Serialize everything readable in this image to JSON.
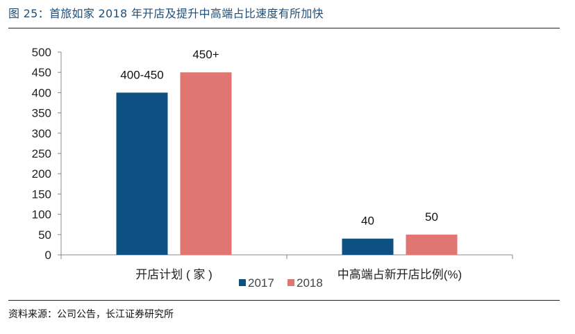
{
  "figure": {
    "title": "图 25：首旅如家 2018 年开店及提升中高端占比速度有所加快",
    "source": "资料来源：公司公告，长江证券研究所"
  },
  "chart_data": {
    "type": "bar",
    "categories": [
      "开店计划 ( 家 )",
      "中高端占新开店比例(%)"
    ],
    "series": [
      {
        "name": "2017",
        "values": [
          400,
          40
        ],
        "labels": [
          "400-450",
          "40"
        ],
        "color": "#0f5083"
      },
      {
        "name": "2018",
        "values": [
          450,
          50
        ],
        "labels": [
          "450+",
          "50"
        ],
        "color": "#e07672"
      }
    ],
    "ylim": [
      0,
      500
    ],
    "yticks": [
      0,
      50,
      100,
      150,
      200,
      250,
      300,
      350,
      400,
      450,
      500
    ],
    "grid": false,
    "legend_position": "bottom-center"
  }
}
